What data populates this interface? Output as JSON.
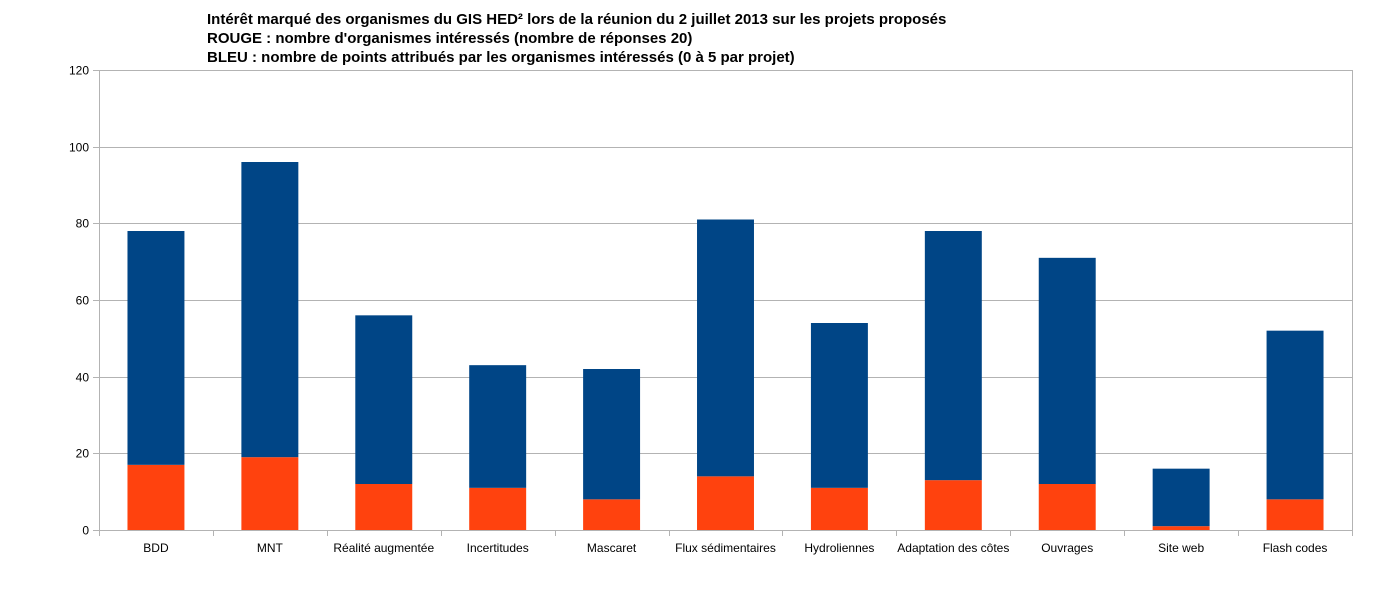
{
  "chart_data": {
    "type": "bar",
    "stacked": true,
    "title_lines": [
      "Intérêt marqué des organismes du GIS HED² lors de la réunion du 2 juillet 2013 sur les projets proposés",
      "ROUGE : nombre d'organismes intéressés (nombre de réponses 20)",
      "BLEU : nombre de points attribués par les organismes intéressés (0 à 5 par projet)"
    ],
    "xlabel": "",
    "ylabel": "",
    "categories": [
      "BDD",
      "MNT",
      "Réalité augmentée",
      "Incertitudes",
      "Mascaret",
      "Flux sédimentaires",
      "Hydroliennes",
      "Adaptation des côtes",
      "Ouvrages",
      "Site web",
      "Flash codes"
    ],
    "series": [
      {
        "color": "#ff420e",
        "values": [
          17,
          19,
          12,
          11,
          8,
          14,
          11,
          13,
          12,
          1,
          8
        ]
      },
      {
        "color": "#004586",
        "values": [
          61,
          77,
          44,
          32,
          34,
          67,
          43,
          65,
          59,
          15,
          44
        ]
      }
    ],
    "stack_totals": [
      78,
      96,
      56,
      43,
      42,
      81,
      54,
      78,
      71,
      16,
      52
    ],
    "ylim": [
      0,
      120
    ],
    "yticks": [
      0,
      20,
      40,
      60,
      80,
      100,
      120
    ],
    "grid": true,
    "legend": "none"
  }
}
